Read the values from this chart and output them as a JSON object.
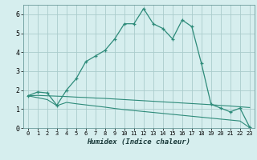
{
  "xlabel": "Humidex (Indice chaleur)",
  "x_values": [
    0,
    1,
    2,
    3,
    4,
    5,
    6,
    7,
    8,
    9,
    10,
    11,
    12,
    13,
    14,
    15,
    16,
    17,
    18,
    19,
    20,
    21,
    22,
    23
  ],
  "line1_y": [
    1.7,
    1.9,
    1.85,
    1.2,
    2.0,
    2.6,
    3.5,
    3.8,
    4.1,
    4.7,
    5.5,
    5.5,
    6.3,
    5.5,
    5.25,
    4.7,
    5.7,
    5.35,
    3.4,
    1.25,
    1.05,
    0.85,
    1.05,
    0.05
  ],
  "line3_y": [
    1.7,
    1.72,
    1.7,
    1.68,
    1.66,
    1.63,
    1.61,
    1.58,
    1.56,
    1.53,
    1.5,
    1.47,
    1.44,
    1.41,
    1.38,
    1.35,
    1.32,
    1.29,
    1.26,
    1.23,
    1.19,
    1.16,
    1.12,
    1.08
  ],
  "line4_y": [
    1.7,
    1.6,
    1.5,
    1.18,
    1.35,
    1.28,
    1.22,
    1.16,
    1.1,
    1.03,
    0.97,
    0.92,
    0.87,
    0.82,
    0.77,
    0.72,
    0.67,
    0.62,
    0.57,
    0.52,
    0.47,
    0.42,
    0.37,
    0.02
  ],
  "line_color": "#2e8b7a",
  "bg_color": "#d6eeee",
  "grid_color": "#aacccc",
  "ylim": [
    0,
    6.5
  ],
  "xlim": [
    -0.5,
    23.5
  ],
  "yticks": [
    0,
    1,
    2,
    3,
    4,
    5,
    6
  ],
  "xticks": [
    0,
    1,
    2,
    3,
    4,
    5,
    6,
    7,
    8,
    9,
    10,
    11,
    12,
    13,
    14,
    15,
    16,
    17,
    18,
    19,
    20,
    21,
    22,
    23
  ]
}
